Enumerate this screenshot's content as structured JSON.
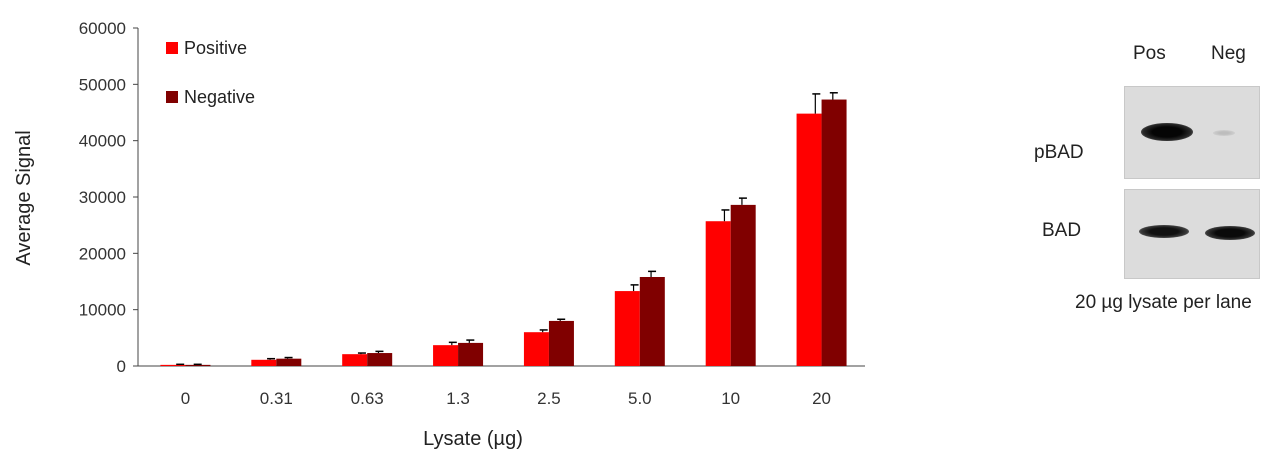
{
  "chart_data": {
    "type": "bar",
    "xlabel": "Lysate (µg)",
    "ylabel": "Average Signal",
    "categories": [
      "0",
      "0.31",
      "0.63",
      "1.3",
      "2.5",
      "5.0",
      "10",
      "20"
    ],
    "ylim": [
      0,
      60000
    ],
    "yticks": [
      "0",
      "10000",
      "20000",
      "30000",
      "40000",
      "50000",
      "60000"
    ],
    "legend_position": "top-left",
    "series": [
      {
        "name": "Positive",
        "color": "#ff0000",
        "values": [
          200,
          1100,
          2100,
          3700,
          6000,
          13300,
          25700,
          44800
        ],
        "errors": [
          100,
          200,
          200,
          500,
          400,
          1100,
          2000,
          3500
        ]
      },
      {
        "name": "Negative",
        "color": "#800000",
        "values": [
          200,
          1300,
          2300,
          4100,
          8000,
          15800,
          28600,
          47300
        ],
        "errors": [
          100,
          200,
          300,
          500,
          300,
          1000,
          1200,
          1200
        ]
      }
    ]
  },
  "blot": {
    "lanes": [
      "Pos",
      "Neg"
    ],
    "rows": [
      {
        "label": "pBAD",
        "pos_intensity": 1.0,
        "neg_intensity": 0.08
      },
      {
        "label": "BAD",
        "pos_intensity": 0.85,
        "neg_intensity": 0.9
      }
    ],
    "caption": "20 µg lysate per lane"
  }
}
